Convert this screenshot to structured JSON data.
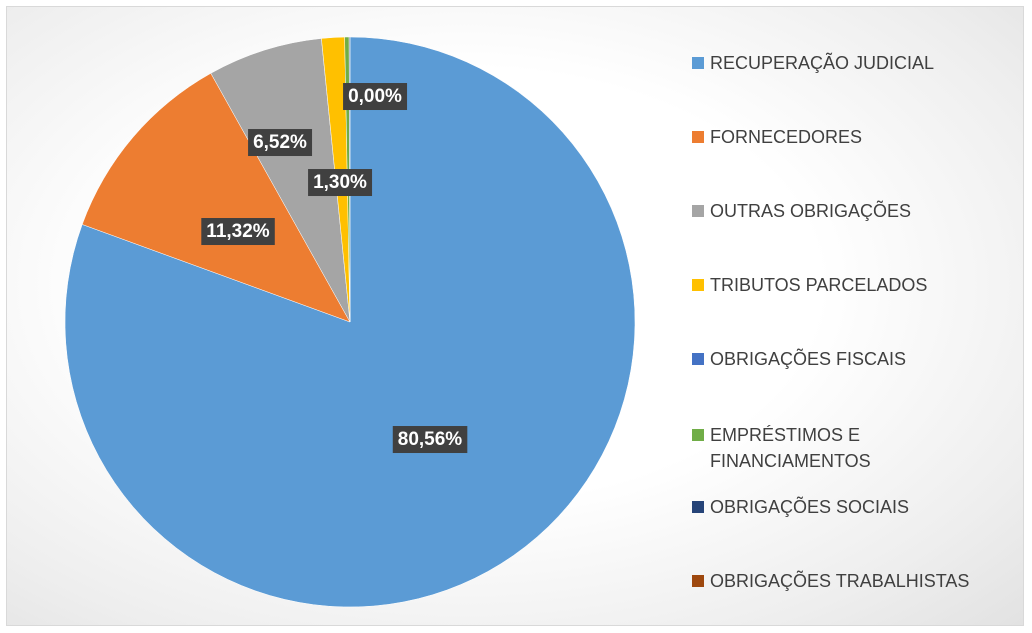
{
  "chart_data": {
    "type": "pie",
    "categories": [
      "RECUPERAÇÃO JUDICIAL",
      "FORNECEDORES",
      "OUTRAS OBRIGAÇÕES",
      "TRIBUTOS PARCELADOS",
      "OBRIGAÇÕES FISCAIS",
      "EMPRÉSTIMOS E FINANCIAMENTOS",
      "OBRIGAÇÕES SOCIAIS",
      "OBRIGAÇÕES TRABALHISTAS"
    ],
    "values": [
      80.56,
      11.32,
      6.52,
      1.3,
      0.0,
      0.25,
      0.05,
      0.0
    ],
    "value_labels": [
      "80,56%",
      "11,32%",
      "6,52%",
      "1,30%",
      "0,00%",
      null,
      null,
      null
    ],
    "colors": [
      "#5b9bd5",
      "#ed7d31",
      "#a5a5a5",
      "#ffc000",
      "#4472c4",
      "#70ad47",
      "#264478",
      "#9e480e"
    ],
    "legend": "right"
  }
}
